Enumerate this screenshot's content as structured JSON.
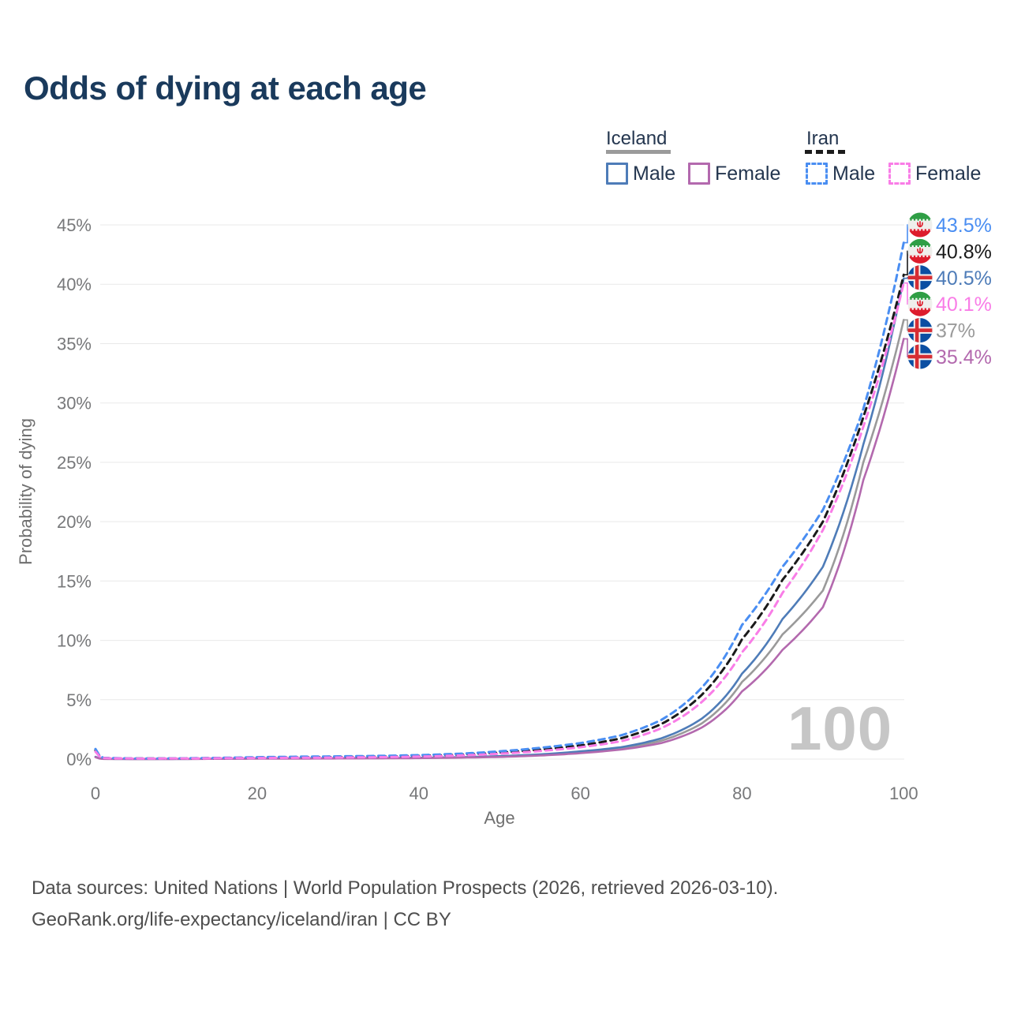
{
  "title": "Odds of dying at each age",
  "legend": {
    "groups": [
      {
        "name": "Iceland",
        "line_style": "solid",
        "underline_color": "#9b9b9b",
        "items": [
          {
            "label": "Male",
            "color": "#4e7cb8",
            "dashed": false
          },
          {
            "label": "Female",
            "color": "#b369ae",
            "dashed": false
          }
        ]
      },
      {
        "name": "Iran",
        "line_style": "dashed",
        "underline_color": "#1c1c1c",
        "items": [
          {
            "label": "Male",
            "color": "#4a8ef2",
            "dashed": true
          },
          {
            "label": "Female",
            "color": "#f97de7",
            "dashed": true
          }
        ]
      }
    ]
  },
  "footer": {
    "line1": "Data sources: United Nations | World Population Prospects (2026, retrieved 2026-03-10).",
    "line2": "GeoRank.org/life-expectancy/iceland/iran | CC BY"
  },
  "chart_data": {
    "type": "line",
    "title": "Odds of dying at each age",
    "xlabel": "Age",
    "ylabel": "Probability of dying",
    "xlim": [
      0,
      100
    ],
    "ylim_percent": [
      0,
      45
    ],
    "x_ticks": [
      0,
      20,
      40,
      60,
      80,
      100
    ],
    "y_ticks_percent": [
      0,
      5,
      10,
      15,
      20,
      25,
      30,
      35,
      40,
      45
    ],
    "y_tick_suffix": "%",
    "grid": "horizontal",
    "age_annotation": "100",
    "ages": [
      0,
      1,
      5,
      10,
      15,
      20,
      25,
      30,
      35,
      40,
      45,
      50,
      55,
      60,
      65,
      70,
      75,
      80,
      85,
      90,
      95,
      100
    ],
    "series": [
      {
        "name": "Iran Male",
        "country": "Iran",
        "sex": "male",
        "flag": "iran",
        "color": "#4a8ef2",
        "dashed": true,
        "z": 5,
        "end_label": "43.5%",
        "end_value": 43.5,
        "values_percent": [
          0.85,
          0.1,
          0.05,
          0.06,
          0.1,
          0.16,
          0.2,
          0.23,
          0.27,
          0.33,
          0.45,
          0.65,
          0.95,
          1.35,
          2.0,
          3.3,
          6.0,
          11.3,
          16.2,
          21.0,
          29.5,
          43.5
        ]
      },
      {
        "name": "Iran Both Sexes",
        "country": "Iran",
        "sex": "all",
        "flag": "iran",
        "color": "#1a1a1a",
        "dashed": true,
        "z": 4,
        "end_label": "40.8%",
        "end_value": 40.8,
        "values_percent": [
          0.74,
          0.09,
          0.045,
          0.05,
          0.085,
          0.12,
          0.15,
          0.18,
          0.21,
          0.27,
          0.37,
          0.55,
          0.8,
          1.15,
          1.75,
          2.95,
          5.4,
          10.1,
          15.1,
          20.0,
          28.8,
          40.8
        ]
      },
      {
        "name": "Iceland Male",
        "country": "Iceland",
        "sex": "male",
        "flag": "iceland",
        "color": "#4e7cb8",
        "dashed": false,
        "z": 2,
        "end_label": "40.5%",
        "end_value": 40.5,
        "values_percent": [
          0.19,
          0.02,
          0.01,
          0.012,
          0.03,
          0.06,
          0.07,
          0.08,
          0.09,
          0.11,
          0.16,
          0.25,
          0.4,
          0.65,
          1.0,
          1.75,
          3.4,
          7.2,
          11.8,
          16.2,
          26.5,
          40.5
        ]
      },
      {
        "name": "Iran Female",
        "country": "Iran",
        "sex": "female",
        "flag": "iran",
        "color": "#f97de7",
        "dashed": true,
        "z": 6,
        "end_label": "40.1%",
        "end_value": 40.1,
        "values_percent": [
          0.62,
          0.08,
          0.04,
          0.045,
          0.07,
          0.09,
          0.11,
          0.13,
          0.16,
          0.21,
          0.3,
          0.45,
          0.68,
          1.0,
          1.5,
          2.6,
          4.8,
          9.0,
          14.0,
          19.3,
          28.0,
          40.1
        ]
      },
      {
        "name": "Iceland Both Sexes",
        "country": "Iceland",
        "sex": "all",
        "flag": "iceland",
        "color": "#9a9a9a",
        "dashed": false,
        "z": 1,
        "end_label": "37%",
        "end_value": 37.0,
        "values_percent": [
          0.18,
          0.018,
          0.009,
          0.011,
          0.025,
          0.05,
          0.055,
          0.065,
          0.075,
          0.095,
          0.14,
          0.21,
          0.35,
          0.57,
          0.9,
          1.55,
          3.0,
          6.5,
          10.5,
          14.2,
          25.0,
          37.0
        ]
      },
      {
        "name": "Iceland Female",
        "country": "Iceland",
        "sex": "female",
        "flag": "iceland",
        "color": "#b369ae",
        "dashed": false,
        "z": 3,
        "end_label": "35.4%",
        "end_value": 35.4,
        "values_percent": [
          0.16,
          0.015,
          0.008,
          0.01,
          0.02,
          0.035,
          0.04,
          0.05,
          0.06,
          0.08,
          0.12,
          0.18,
          0.3,
          0.5,
          0.8,
          1.35,
          2.65,
          5.7,
          9.2,
          12.8,
          23.5,
          35.4
        ]
      }
    ]
  }
}
